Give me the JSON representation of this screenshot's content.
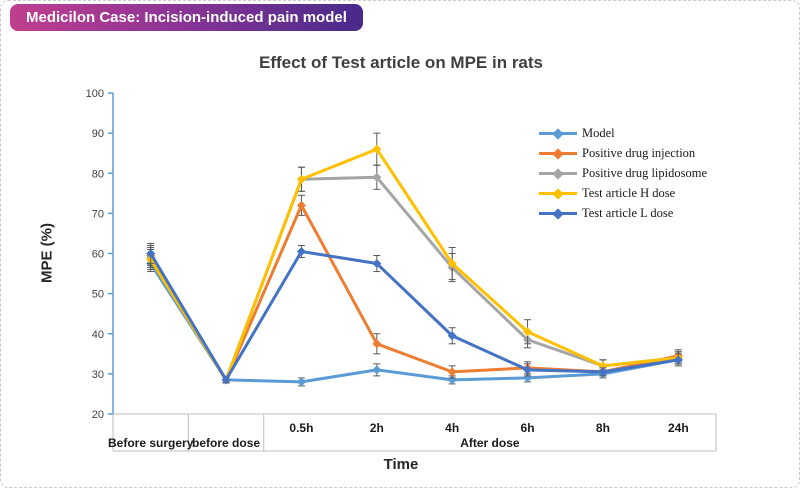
{
  "header": {
    "badge_label": "Medicilon Case: Incision-induced pain model"
  },
  "colors": {
    "badge_gradient_start": "#c13e8e",
    "badge_gradient_end": "#472a8b",
    "y_axis": "#5b9bd5",
    "axis_box": "#bfbfbf",
    "error_bar": "#595959",
    "tick_label": "#404040",
    "category_label": "#1a1a1a",
    "title_text": "#3f3f3f"
  },
  "chart_data": {
    "type": "line",
    "title": "Effect of Test article on MPE in rats",
    "xlabel": "Time",
    "ylabel": "MPE (%)",
    "ylim": [
      20,
      100
    ],
    "ytick_step": 10,
    "grid": false,
    "legend_position": "inside-right",
    "marker": "diamond",
    "error_bars": true,
    "categories": [
      "Before surgery",
      "before dose",
      "0.5h",
      "2h",
      "4h",
      "6h",
      "8h",
      "24h"
    ],
    "tick_row_labels": [
      "",
      "",
      "0.5h",
      "2h",
      "4h",
      "6h",
      "8h",
      "24h"
    ],
    "category_groups": [
      {
        "label": "Before surgery",
        "start": 0,
        "end": 1
      },
      {
        "label": "before dose",
        "start": 1,
        "end": 2
      },
      {
        "label": "After dose",
        "start": 2,
        "end": 8
      }
    ],
    "series": [
      {
        "name": "Model",
        "color": "#5b9bd5",
        "values": [
          57.5,
          28.5,
          28,
          31,
          28.5,
          29,
          30,
          33.5
        ],
        "errors": [
          2,
          0.7,
          1,
          1.5,
          1,
          1,
          1,
          1
        ]
      },
      {
        "name": "Positive drug injection",
        "color": "#ed7d31",
        "values": [
          59.5,
          28.5,
          72,
          37.5,
          30.5,
          31.5,
          30.5,
          34.5
        ],
        "errors": [
          2.5,
          0.7,
          2.5,
          2.5,
          1.5,
          1.5,
          1,
          1.5
        ]
      },
      {
        "name": "Positive drug lipidosome",
        "color": "#a5a5a5",
        "values": [
          59,
          28.5,
          78.5,
          79,
          56.5,
          38.5,
          32,
          34
        ],
        "errors": [
          2.5,
          0.7,
          3,
          3,
          3.5,
          2,
          1.5,
          1.5
        ]
      },
      {
        "name": "Test article H dose",
        "color": "#ffc000",
        "values": [
          58.5,
          28.5,
          78.5,
          86,
          57.5,
          40.5,
          32,
          34
        ],
        "errors": [
          2.5,
          0.7,
          3,
          4,
          4,
          3,
          1.5,
          1.5
        ]
      },
      {
        "name": "Test article L dose",
        "color": "#4472c4",
        "values": [
          60,
          28.5,
          60.5,
          57.5,
          39.5,
          31,
          30.5,
          33.5
        ],
        "errors": [
          2.5,
          0.7,
          1.5,
          2,
          2,
          1.5,
          1,
          1.5
        ]
      }
    ]
  }
}
